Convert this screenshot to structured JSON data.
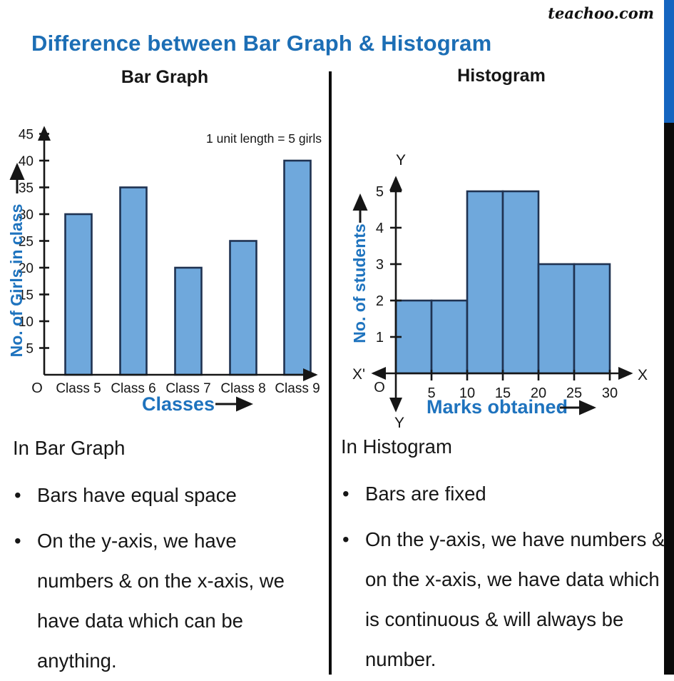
{
  "header": {
    "title": "Difference between Bar Graph & Histogram",
    "watermark": "teachoo.com"
  },
  "columns": {
    "left": {
      "heading": "Bar Graph",
      "section_title": "In Bar Graph",
      "bullets": [
        "Bars have equal space",
        "On the y-axis, we have numbers & on the x-axis, we have data which can be anything."
      ]
    },
    "right": {
      "heading": "Histogram",
      "section_title": "In Histogram",
      "bullets": [
        "Bars are fixed",
        "On the y-axis, we have numbers & on the x-axis, we have data which is continuous & will always be number."
      ]
    }
  },
  "colors": {
    "title_blue": "#1C6EB5",
    "accent_blue": "#1E73BE",
    "bar_fill": "#6FA8DC",
    "bar_stroke": "#1F3251",
    "axis_black": "#161616",
    "stripe_blue": "#1565C0",
    "stripe_black": "#0A0A0A"
  },
  "chart_data": [
    {
      "type": "bar",
      "title": "Bar Graph",
      "categories": [
        "Class 5",
        "Class 6",
        "Class 7",
        "Class 8",
        "Class 9"
      ],
      "values": [
        30,
        35,
        20,
        25,
        40
      ],
      "xlabel": "Classes",
      "ylabel": "No. of Girls in class",
      "yticks": [
        5,
        10,
        15,
        20,
        25,
        30,
        35,
        40,
        45
      ],
      "ylim": [
        0,
        47
      ],
      "annotation": "1 unit length = 5 girls",
      "origin_label": "O",
      "grid": false,
      "legend": "none"
    },
    {
      "type": "histogram",
      "title": "Histogram",
      "bin_edges": [
        0,
        5,
        10,
        15,
        20,
        25,
        30
      ],
      "frequencies": [
        2,
        2,
        5,
        5,
        3,
        3
      ],
      "xticks": [
        5,
        10,
        15,
        20,
        25,
        30
      ],
      "yticks": [
        1,
        2,
        3,
        4,
        5
      ],
      "xlabel": "Marks obtained",
      "ylabel": "No. of students",
      "ylim": [
        0,
        5.5
      ],
      "xlim": [
        0,
        33
      ],
      "axis_end_labels": {
        "x_left": "X'",
        "x_right": "X",
        "y_top": "Y",
        "y_bottom": "Y"
      },
      "origin_label": "O",
      "grid": false,
      "legend": "none"
    }
  ]
}
